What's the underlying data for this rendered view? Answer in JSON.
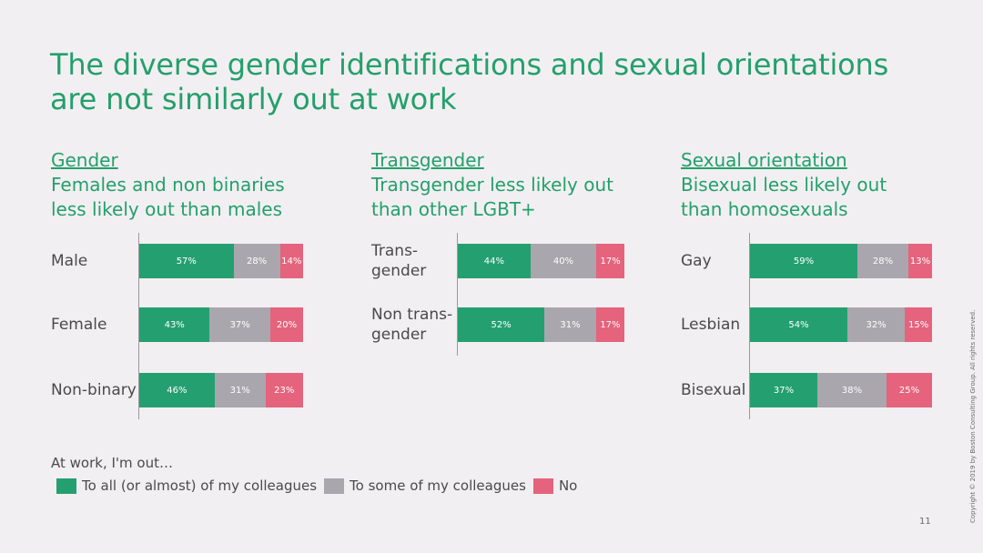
{
  "title_lines": [
    "The diverse gender identifications and sexual orientations",
    "are not similarly out at work"
  ],
  "colors": {
    "all": "#24a070",
    "some": "#aaa6ae",
    "no": "#e5637c",
    "accent": "#23a06b"
  },
  "legend": {
    "intro": "At work, I'm out…",
    "items": [
      "To all (or almost) of my colleagues",
      "To some of my colleagues",
      "No"
    ]
  },
  "page_number": "11",
  "copyright": "Copyright © 2019 by Boston Consulting Group. All rights reserved.",
  "chart_data": [
    {
      "type": "bar",
      "stacked": true,
      "orientation": "horizontal",
      "heading": "Gender",
      "subheading_lines": [
        "Females and non binaries",
        "less likely out than males"
      ],
      "categories": [
        "Male",
        "Female",
        "Non-binary"
      ],
      "series": [
        {
          "name": "To all (or almost) of my colleagues",
          "values": [
            57,
            43,
            46
          ]
        },
        {
          "name": "To some of my colleagues",
          "values": [
            28,
            37,
            31
          ]
        },
        {
          "name": "No",
          "values": [
            14,
            20,
            23
          ]
        }
      ]
    },
    {
      "type": "bar",
      "stacked": true,
      "orientation": "horizontal",
      "heading": "Transgender",
      "subheading_lines": [
        "Transgender less likely out",
        "than other LGBT+"
      ],
      "categories": [
        "Trans-\ngender",
        "Non trans-\ngender"
      ],
      "series": [
        {
          "name": "To all (or almost) of my colleagues",
          "values": [
            44,
            52
          ]
        },
        {
          "name": "To some of my colleagues",
          "values": [
            40,
            31
          ]
        },
        {
          "name": "No",
          "values": [
            17,
            17
          ]
        }
      ]
    },
    {
      "type": "bar",
      "stacked": true,
      "orientation": "horizontal",
      "heading": "Sexual orientation",
      "subheading_lines": [
        "Bisexual less likely out",
        "than homosexuals"
      ],
      "categories": [
        "Gay",
        "Lesbian",
        "Bisexual"
      ],
      "series": [
        {
          "name": "To all (or almost) of my colleagues",
          "values": [
            59,
            54,
            37
          ]
        },
        {
          "name": "To some of my colleagues",
          "values": [
            28,
            32,
            38
          ]
        },
        {
          "name": "No",
          "values": [
            13,
            15,
            25
          ]
        }
      ]
    }
  ]
}
